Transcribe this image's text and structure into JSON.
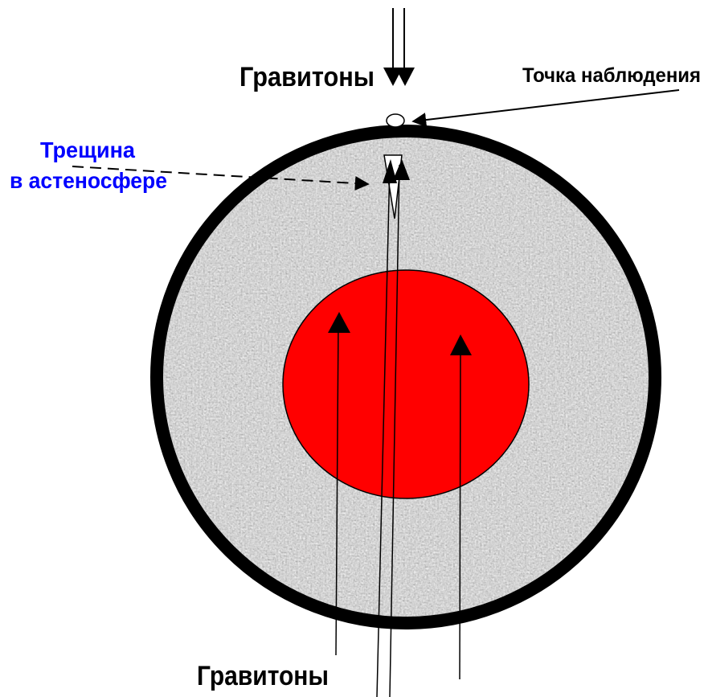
{
  "labels": {
    "gravitons_top": "Гравитоны",
    "observation_point": "Точка наблюдения",
    "crack_line1": "Трещина",
    "crack_line2": "в астеносфере",
    "gravitons_bottom": "Гравитоны"
  }
}
